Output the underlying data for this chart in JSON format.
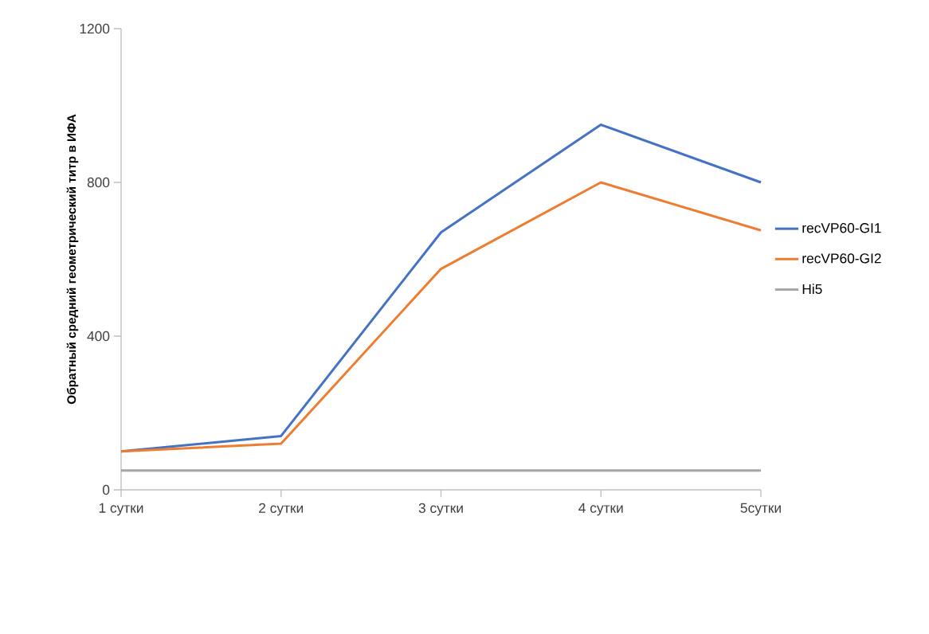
{
  "chart_data": {
    "type": "line",
    "ylabel": "Обратный средний геометрический титр в ИФА",
    "categories": [
      "1 сутки",
      "2 сутки",
      "3 сутки",
      "4 сутки",
      "5сутки"
    ],
    "series": [
      {
        "name": "recVP60-GI1",
        "color": "#4472c4",
        "values": [
          100,
          140,
          670,
          950,
          800
        ]
      },
      {
        "name": "recVP60-GI2",
        "color": "#ed7d31",
        "values": [
          100,
          120,
          575,
          800,
          675
        ]
      },
      {
        "name": "Hi5",
        "color": "#a5a5a5",
        "values": [
          50,
          50,
          50,
          50,
          50
        ]
      }
    ],
    "ylim": [
      0,
      1200
    ],
    "yticks": [
      0,
      400,
      800,
      1200
    ],
    "grid": false,
    "legend": "right",
    "marker": "none",
    "line_style": "solid"
  }
}
